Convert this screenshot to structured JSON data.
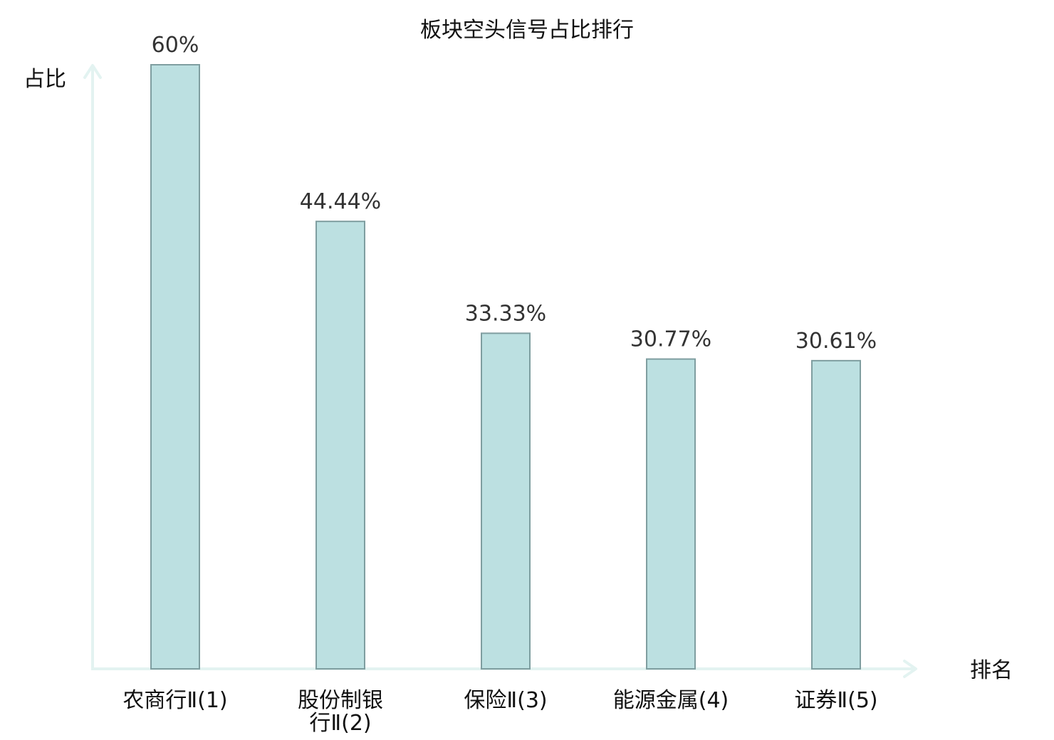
{
  "chart_data": {
    "type": "bar",
    "title": "板块空头信号占比排行",
    "ylabel": "占比",
    "xlabel": "排名",
    "ylim": [
      0,
      60
    ],
    "grid": false,
    "categories": [
      {
        "lines": [
          "农商行Ⅱ(1)"
        ],
        "highlight": true
      },
      {
        "lines": [
          "股份制银",
          "行Ⅱ(2)"
        ],
        "highlight": false
      },
      {
        "lines": [
          "保险Ⅱ(3)"
        ],
        "highlight": false
      },
      {
        "lines": [
          "能源金属(4)"
        ],
        "highlight": false
      },
      {
        "lines": [
          "证券Ⅱ(5)"
        ],
        "highlight": false
      }
    ],
    "values": [
      60,
      44.44,
      33.33,
      30.77,
      30.61
    ],
    "value_labels": [
      "60%",
      "44.44%",
      "33.33%",
      "30.77%",
      "30.61%"
    ]
  },
  "colors": {
    "bar_fill": "#bce0e1",
    "bar_stroke": "#7f9ea0",
    "axis": "#e3f3f1",
    "highlight": "#e02020",
    "text": "#111111",
    "value_text": "#333333"
  }
}
